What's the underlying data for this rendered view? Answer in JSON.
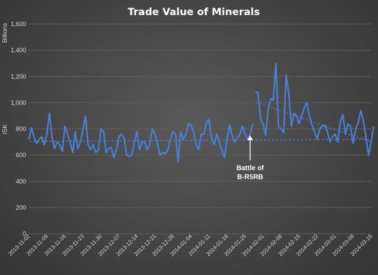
{
  "chart_data": {
    "type": "line",
    "title": "Trade Value of Minerals",
    "ylabel": "ISK",
    "yunit": "Billions",
    "ylim": [
      0,
      1600
    ],
    "yticks": [
      0,
      200,
      400,
      600,
      800,
      1000,
      1200,
      1400,
      1600
    ],
    "ytick_labels": [
      "0",
      "200",
      "400",
      "600",
      "800",
      "1,000",
      "1,200",
      "1,400",
      "1,600"
    ],
    "xlim": [
      "2013-11-02",
      "2014-03-15"
    ],
    "xticks": [
      "2013-11-02",
      "2013-11-09",
      "2013-11-16",
      "2013-11-23",
      "2013-11-30",
      "2013-12-07",
      "2013-12-14",
      "2013-12-21",
      "2013-12-28",
      "2014-01-04",
      "2014-01-11",
      "2014-01-18",
      "2014-01-25",
      "2014-02-01",
      "2014-02-08",
      "2014-02-15",
      "2014-02-22",
      "2014-03-01",
      "2014-03-08",
      "2014-03-15"
    ],
    "grid": true,
    "legend": "none",
    "series": [
      {
        "color": "#4a7fd6",
        "segments": [
          {
            "x_start": "2013-11-02",
            "values": [
              720,
              810,
              740,
              690,
              720,
              740,
              680,
              760,
              920,
              740,
              650,
              700,
              680,
              630,
              820,
              760,
              700,
              620,
              780,
              650,
              700,
              790,
              900,
              680,
              640,
              680,
              620,
              640,
              800,
              780,
              620,
              650,
              660,
              580,
              640,
              740,
              760,
              730,
              600,
              590,
              600,
              700,
              780,
              640,
              700,
              700,
              640,
              680,
              800,
              760,
              680,
              600,
              620,
              610,
              640,
              720,
              780,
              760,
              550,
              780,
              720,
              760,
              840,
              830,
              780,
              680,
              640,
              760,
              760,
              850,
              870,
              730,
              680,
              760,
              700,
              640,
              580,
              720,
              830,
              750,
              700,
              730,
              760,
              820,
              760,
              720,
              760,
              840
            ]
          },
          {
            "x_start": "2014-01-29",
            "values": [
              1080,
              1080,
              880,
              840,
              750,
              950,
              1030,
              1020,
              1300,
              820,
              800,
              770,
              1210,
              1070,
              820,
              920,
              900,
              840,
              900,
              960,
              1000,
              900,
              830,
              780,
              720,
              800,
              820,
              830,
              780,
              700,
              740,
              760,
              700,
              850,
              910,
              760,
              840,
              820,
              690,
              800,
              850,
              940,
              860,
              740,
              600,
              700,
              820
            ]
          }
        ]
      }
    ],
    "trendlines": [
      {
        "style": "dashed",
        "from": [
          "2013-11-02",
          705
        ],
        "to": [
          "2014-03-15",
          720
        ]
      },
      {
        "style": "dashed",
        "from": [
          "2014-01-29",
          1005
        ],
        "to": [
          "2014-03-15",
          700
        ]
      }
    ],
    "annotations": [
      {
        "text": [
          "Battle of",
          "B-R5RB"
        ],
        "arrow_x": "2014-01-27",
        "arrow_from_y": 560,
        "arrow_to_y": 750
      }
    ]
  }
}
